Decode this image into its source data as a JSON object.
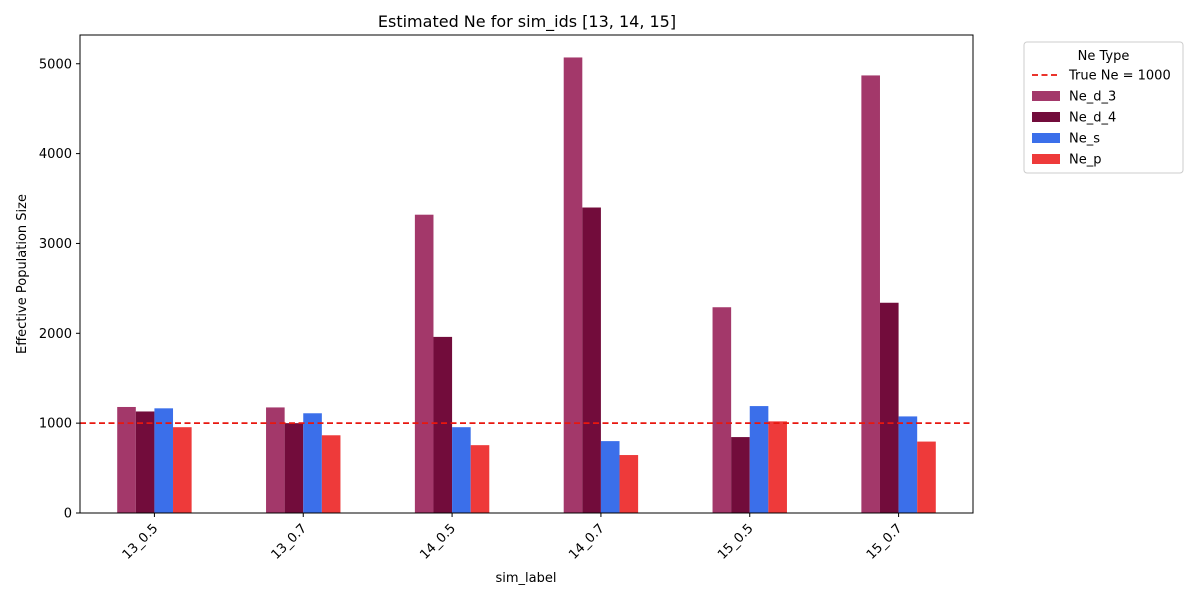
{
  "chart_data": {
    "type": "bar",
    "title": "Estimated Ne for sim_ids [13, 14, 15]",
    "xlabel": "sim_label",
    "ylabel": "Effective Population Size",
    "ylim": [
      0,
      5320
    ],
    "yticks": [
      0,
      1000,
      2000,
      3000,
      4000,
      5000
    ],
    "categories": [
      "13_0.5",
      "13_0.7",
      "14_0.5",
      "14_0.7",
      "15_0.5",
      "15_0.7"
    ],
    "series": [
      {
        "name": "Ne_d_3",
        "color": "#a3386a",
        "values": [
          1180,
          1175,
          3320,
          5070,
          2290,
          4870
        ]
      },
      {
        "name": "Ne_d_4",
        "color": "#720c3b",
        "values": [
          1130,
          1000,
          1960,
          3400,
          845,
          2340
        ]
      },
      {
        "name": "Ne_s",
        "color": "#3b6fea",
        "values": [
          1165,
          1110,
          955,
          800,
          1190,
          1075
        ]
      },
      {
        "name": "Ne_p",
        "color": "#ee3a3a",
        "values": [
          955,
          865,
          755,
          645,
          1020,
          795
        ]
      }
    ],
    "reference_line": {
      "label": "True Ne = 1000",
      "value": 1000,
      "color": "#e8170f",
      "style": "dashed"
    },
    "legend": {
      "title": "Ne Type",
      "placement": "outside-top-right"
    },
    "grid": false
  }
}
